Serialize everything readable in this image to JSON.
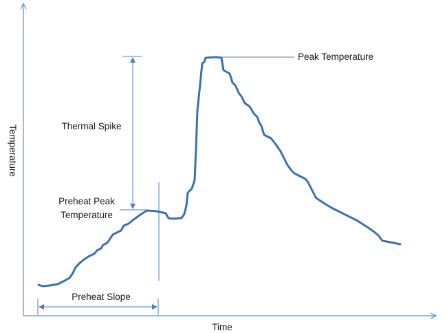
{
  "diagram": {
    "x_axis_label": "Time",
    "y_axis_label": "Temperature",
    "annotations": {
      "peak_temperature": "Peak Temperature",
      "thermal_spike": "Thermal Spike",
      "preheat_peak_line1": "Preheat Peak",
      "preheat_peak_line2": "Temperature",
      "preheat_slope": "Preheat Slope"
    },
    "colors": {
      "curve": "#3c6fb4",
      "axis": "#5b9bd5",
      "guide": "#4f7fbf",
      "text": "#1a1a1a"
    }
  }
}
